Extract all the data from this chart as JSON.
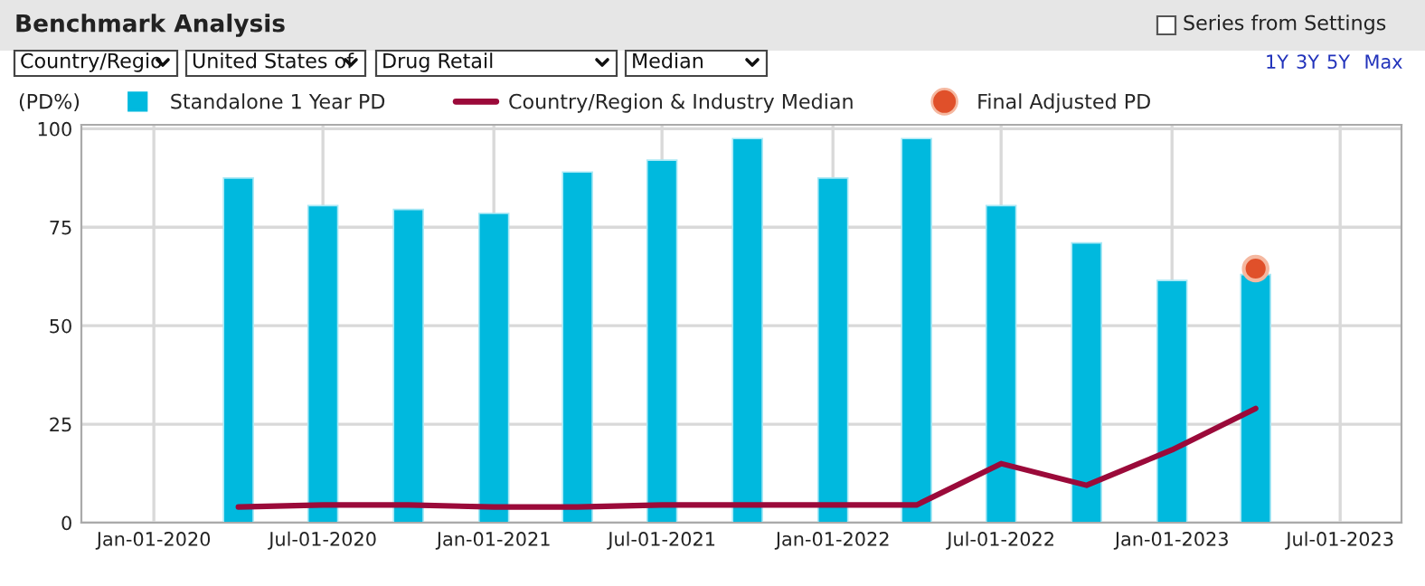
{
  "chart_data": {
    "type": "bar",
    "title": "Benchmark Analysis",
    "ylabel": "(PD%)",
    "x": [
      "2020-04-01",
      "2020-07-01",
      "2020-10-01",
      "2021-01-01",
      "2021-04-01",
      "2021-07-01",
      "2021-10-01",
      "2022-01-01",
      "2022-04-01",
      "2022-07-01",
      "2022-10-01",
      "2023-01-01",
      "2023-04-01"
    ],
    "series": [
      {
        "name": "Standalone 1 Year PD",
        "color": "#00b9de",
        "values": [
          87.5,
          80.5,
          79.5,
          78.5,
          89,
          92,
          97.5,
          87.5,
          97.5,
          80.5,
          71,
          61.5,
          63
        ]
      },
      {
        "name": "Country/Region & Industry Median",
        "type": "line",
        "color": "#9b0a3a",
        "marker": "none",
        "line_style": "solid",
        "values": [
          4,
          4.5,
          4.5,
          4,
          4,
          4.5,
          4.5,
          4.5,
          4.5,
          15,
          9.5,
          18.5,
          29
        ]
      },
      {
        "name": "Final Adjusted PD",
        "type": "scatter",
        "color": "#e0502a",
        "marker": "circle",
        "x": [
          "2023-04-01"
        ],
        "values": [
          64.5
        ]
      }
    ],
    "xlim": [
      "2019-10-15",
      "2023-09-05"
    ],
    "xticks": [
      {
        "value": "2020-01-01",
        "label": "Jan-01-2020"
      },
      {
        "value": "2020-07-01",
        "label": "Jul-01-2020"
      },
      {
        "value": "2021-01-01",
        "label": "Jan-01-2021"
      },
      {
        "value": "2021-07-01",
        "label": "Jul-01-2021"
      },
      {
        "value": "2022-01-01",
        "label": "Jan-01-2022"
      },
      {
        "value": "2022-07-01",
        "label": "Jul-01-2022"
      },
      {
        "value": "2023-01-01",
        "label": "Jan-01-2023"
      },
      {
        "value": "2023-07-01",
        "label": "Jul-01-2023"
      }
    ],
    "ylim": [
      0,
      101
    ],
    "yticks": [
      0,
      25,
      50,
      75,
      100
    ],
    "grid": true,
    "legend": "top",
    "annotations": [
      "Country/Regio",
      "United States of",
      "Drug Retail",
      "Median",
      "Series from Settings",
      "1Y",
      "3Y",
      "5Y",
      "Max"
    ]
  }
}
